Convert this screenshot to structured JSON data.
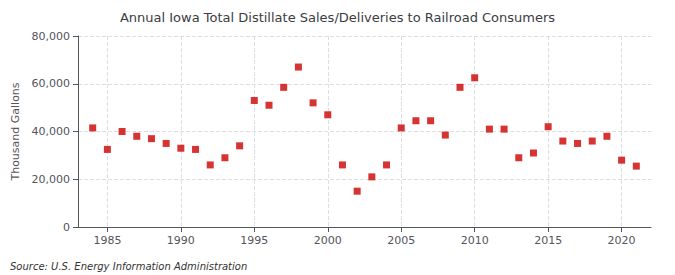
{
  "chart_data": {
    "type": "scatter",
    "title": "Annual Iowa Total Distillate Sales/Deliveries to Railroad Consumers",
    "ylabel": "Thousand Gallons",
    "annotations": [
      "Source: U.S. Energy Information Administration"
    ],
    "x": [
      1984,
      1985,
      1986,
      1987,
      1988,
      1989,
      1990,
      1991,
      1992,
      1993,
      1994,
      1995,
      1996,
      1997,
      1998,
      1999,
      2000,
      2001,
      2002,
      2003,
      2004,
      2005,
      2006,
      2007,
      2008,
      2009,
      2010,
      2011,
      2012,
      2013,
      2014,
      2015,
      2016,
      2017,
      2018,
      2019,
      2020,
      2021
    ],
    "values": [
      41500,
      32500,
      40000,
      38000,
      37000,
      35000,
      33000,
      32500,
      26000,
      29000,
      34000,
      53000,
      51000,
      58500,
      67000,
      52000,
      47000,
      26000,
      15000,
      21000,
      26000,
      41500,
      44500,
      44500,
      38500,
      58500,
      62500,
      41000,
      41000,
      29000,
      31000,
      42000,
      36000,
      35000,
      36000,
      38000,
      28000,
      25500
    ],
    "color": "#cc0000",
    "marker": "square",
    "xlim": [
      1983,
      2022
    ],
    "xticks": [
      1985,
      1990,
      1995,
      2000,
      2005,
      2010,
      2015,
      2020
    ],
    "ylim": [
      0,
      80000
    ],
    "yticks": [
      0,
      {
        "value": 20000,
        "label": "20,000"
      },
      {
        "value": 40000,
        "label": "40,000"
      },
      {
        "value": 60000,
        "label": "60,000"
      },
      {
        "value": 80000,
        "label": "80,000"
      }
    ],
    "grid": true
  }
}
